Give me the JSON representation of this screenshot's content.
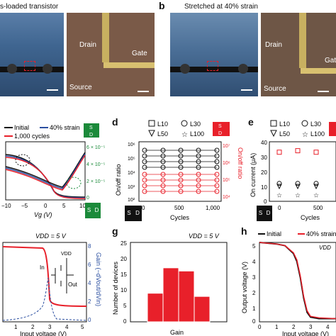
{
  "panel_a": {
    "title": "s-loaded transistor",
    "labels": {
      "drain": "Drain",
      "source": "Source"
    }
  },
  "panel_b": {
    "letter": "b",
    "title": "Stretched at 40% strain",
    "labels": {
      "drain": "Drain",
      "gate": "Gate",
      "source": "Source",
      "gate_partial": "Gat"
    }
  },
  "panel_a_gate": "Gate",
  "panel_c": {
    "legend": [
      "Initial",
      "40% strain",
      "1,000 cycles"
    ],
    "xlabel": "Vg (V)",
    "xticks": [
      "−10",
      "−5",
      "0",
      "5",
      "10"
    ],
    "right_ticks": [
      "6 × 10⁻⁵",
      "4 × 10⁻⁵",
      "2 × 10⁻⁵",
      "0"
    ],
    "sd_top": [
      "S",
      "D"
    ],
    "sd_bottom": [
      "S",
      "D"
    ]
  },
  "panel_d": {
    "letter": "d",
    "legend": [
      "L10",
      "L30",
      "L50",
      "L100"
    ],
    "ylabel_left": "On/off ratio",
    "ylabel_right": "On/off ratio",
    "yticks_left": [
      "10⁶",
      "10⁵",
      "10⁴",
      "10³",
      "10²"
    ],
    "yticks_right": [
      "10⁷",
      "10⁶",
      "10⁵",
      "10⁴"
    ],
    "xticks": [
      "0",
      "500",
      "1,000"
    ],
    "xlabel": "Cycles",
    "sd_top": [
      "S",
      "D"
    ],
    "sd_bottom": [
      "S",
      "D"
    ]
  },
  "panel_e": {
    "letter": "e",
    "legend": [
      "L10",
      "L30",
      "L50",
      "L100"
    ],
    "ylabel": "On current (μA)",
    "yticks": [
      "40",
      "30",
      "20",
      "10",
      "0"
    ],
    "xticks": [
      "0",
      "500"
    ],
    "xlabel": "Cycles",
    "sd_bottom": [
      "S",
      "D"
    ]
  },
  "panel_f": {
    "vdd": "VDD = 5 V",
    "ylabel_right": "Gain (−dVout/dVin)",
    "right_ticks": [
      "8",
      "6",
      "4",
      "2",
      "0"
    ],
    "xticks": [
      "1",
      "2",
      "3",
      "4",
      "5"
    ],
    "xlabel": "Input voltage (V)",
    "circuit": {
      "vdd": "VDD",
      "in": "In",
      "out": "Out"
    }
  },
  "panel_g": {
    "letter": "g",
    "vdd": "VDD = 5 V",
    "ylabel": "Number of devices",
    "yticks": [
      "25",
      "20",
      "15",
      "10",
      "5",
      "0"
    ],
    "xlabel": "Gain",
    "color": "#e8202a"
  },
  "panel_h": {
    "letter": "h",
    "legend": [
      "Initial",
      "40% strain"
    ],
    "vdd": "VDD",
    "ylabel": "Output voltage (V)",
    "yticks": [
      "5",
      "4",
      "3",
      "2",
      "1",
      "0"
    ],
    "xticks": [
      "0",
      "1",
      "2",
      "3",
      "4"
    ],
    "xlabel": "Input voltage (V)"
  },
  "colors": {
    "red": "#e8202a",
    "blue": "#2b4fa0",
    "green": "#1b8a3a",
    "black": "#111111"
  },
  "chart_data": [
    {
      "type": "line",
      "panel": "c",
      "xlabel": "Vg (V)",
      "xlim": [
        -10,
        10
      ],
      "series": [
        {
          "name": "Initial",
          "x": [
            -10,
            -8,
            -6,
            -4,
            -2,
            0,
            2,
            4,
            6,
            8,
            10
          ],
          "y": [
            0.8,
            0.75,
            0.7,
            0.6,
            0.45,
            0.25,
            0.15,
            0.25,
            0.4,
            0.55,
            0.7
          ]
        },
        {
          "name": "40% strain",
          "x": [
            -10,
            -8,
            -6,
            -4,
            -2,
            0,
            2,
            4,
            6,
            8,
            10
          ],
          "y": [
            0.82,
            0.77,
            0.72,
            0.62,
            0.47,
            0.27,
            0.17,
            0.27,
            0.42,
            0.57,
            0.72
          ]
        },
        {
          "name": "1,000 cycles",
          "x": [
            -10,
            -8,
            -6,
            -4,
            -2,
            0,
            2,
            4,
            6,
            8,
            10
          ],
          "y": [
            0.81,
            0.76,
            0.71,
            0.61,
            0.46,
            0.26,
            0.16,
            0.26,
            0.41,
            0.56,
            0.71
          ]
        }
      ]
    },
    {
      "type": "scatter",
      "panel": "d",
      "xlabel": "Cycles",
      "ylabel": "On/off ratio",
      "x": [
        0,
        250,
        500,
        750,
        1000
      ],
      "series": [
        {
          "name": "L10",
          "values": [
            5.6,
            5.6,
            5.6,
            5.6,
            5.6
          ]
        },
        {
          "name": "L30",
          "values": [
            5.3,
            5.3,
            5.3,
            5.3,
            5.3
          ]
        },
        {
          "name": "L50",
          "values": [
            5.0,
            5.0,
            5.0,
            5.0,
            5.0
          ]
        },
        {
          "name": "L100",
          "values": [
            5.8,
            5.8,
            5.8,
            5.8,
            5.8
          ]
        }
      ]
    },
    {
      "type": "scatter",
      "panel": "e",
      "xlabel": "Cycles",
      "ylabel": "On current (μA)",
      "ylim": [
        0,
        40
      ],
      "x": [
        0,
        250,
        500
      ],
      "series": [
        {
          "name": "L10",
          "values": [
            33,
            34,
            33
          ]
        },
        {
          "name": "L30",
          "values": [
            12,
            12,
            12
          ]
        },
        {
          "name": "L50",
          "values": [
            10,
            10,
            10
          ]
        },
        {
          "name": "L100",
          "values": [
            4,
            4,
            4
          ]
        }
      ]
    },
    {
      "type": "line",
      "panel": "f",
      "xlabel": "Input voltage (V)",
      "xlim": [
        0,
        5
      ],
      "series": [
        {
          "name": "transfer",
          "x": [
            0,
            1,
            2,
            2.4,
            2.6,
            2.8,
            3,
            4,
            5
          ],
          "y": [
            5,
            4.95,
            4.9,
            4.6,
            2.5,
            0.3,
            0.2,
            0.2,
            0.2
          ]
        },
        {
          "name": "gain",
          "x": [
            0,
            1,
            2,
            2.5,
            2.7,
            2.9,
            3,
            4,
            5
          ],
          "y": [
            0,
            0.2,
            0.5,
            2,
            7,
            2,
            0.5,
            0.2,
            0
          ]
        }
      ]
    },
    {
      "type": "bar",
      "panel": "g",
      "xlabel": "Gain",
      "ylabel": "Number of devices",
      "ylim": [
        0,
        25
      ],
      "values": [
        9,
        17,
        16,
        8
      ]
    },
    {
      "type": "line",
      "panel": "h",
      "xlabel": "Input voltage (V)",
      "ylabel": "Output voltage (V)",
      "xlim": [
        0,
        4.5
      ],
      "ylim": [
        0,
        5
      ],
      "series": [
        {
          "name": "Initial",
          "x": [
            0,
            1,
            1.5,
            2,
            2.2,
            2.4,
            2.6,
            2.8,
            3,
            3.5,
            4.5
          ],
          "y": [
            5,
            4.9,
            4.8,
            4.3,
            3.8,
            2.8,
            1.5,
            0.6,
            0.3,
            0.2,
            0.2
          ]
        },
        {
          "name": "40% strain",
          "x": [
            0,
            1,
            1.5,
            2,
            2.2,
            2.4,
            2.6,
            2.8,
            3,
            3.5,
            4.5
          ],
          "y": [
            5,
            4.9,
            4.8,
            4.35,
            3.9,
            2.9,
            1.6,
            0.7,
            0.35,
            0.25,
            0.2
          ]
        }
      ]
    }
  ]
}
